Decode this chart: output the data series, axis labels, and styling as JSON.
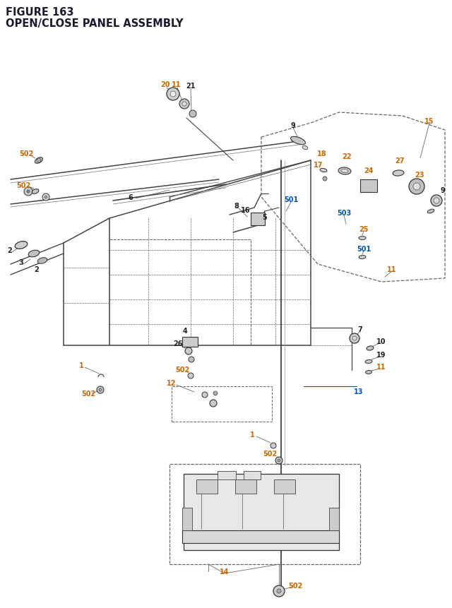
{
  "title_line1": "FIGURE 163",
  "title_line2": "OPEN/CLOSE PANEL ASSEMBLY",
  "title_color": "#1a1a2e",
  "title_fontsize": 10.5,
  "bg_color": "#ffffff",
  "oc": "#cc6600",
  "bc": "#0055bb",
  "bk": "#222222",
  "lc": "#444444",
  "dc": "#666666",
  "figsize": [
    6.4,
    8.62
  ],
  "dpi": 100
}
